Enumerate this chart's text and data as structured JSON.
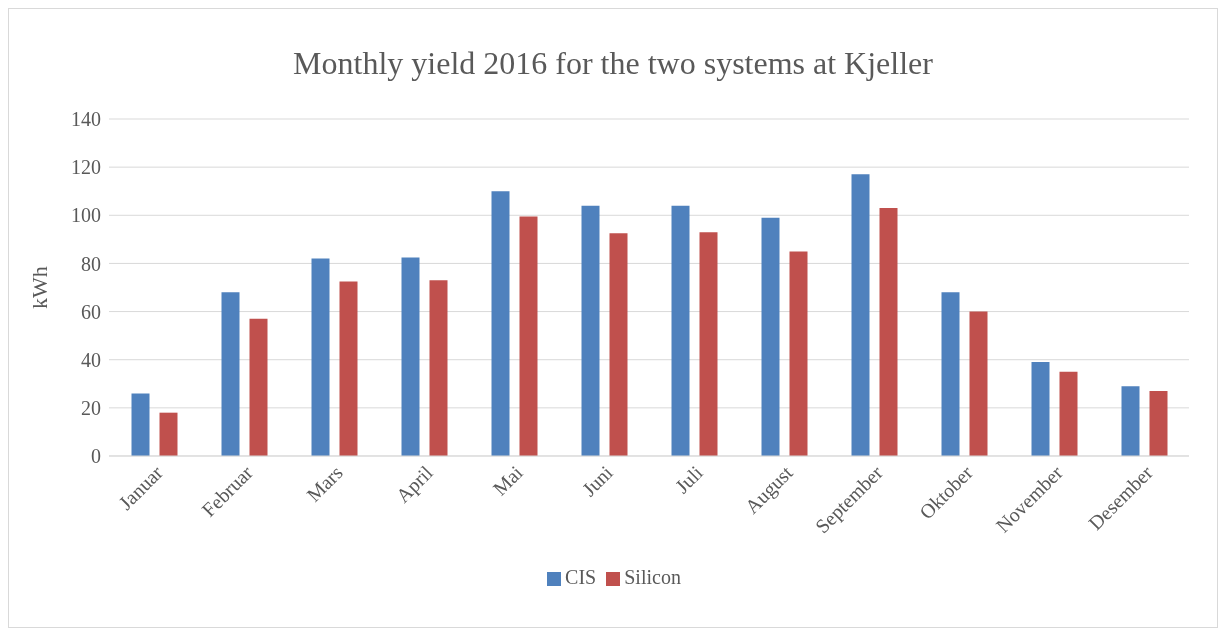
{
  "chart_data": {
    "type": "bar",
    "title": "Monthly yield 2016 for the two systems at Kjeller",
    "ylabel": "kWh",
    "categories": [
      "Januar",
      "Februar",
      "Mars",
      "April",
      "Mai",
      "Juni",
      "Juli",
      "August",
      "September",
      "Oktober",
      "November",
      "Desember"
    ],
    "series": [
      {
        "name": "CIS",
        "color": "#4f81bd",
        "values": [
          26,
          68,
          82,
          82.5,
          110,
          104,
          104,
          99,
          117,
          68,
          39,
          29
        ]
      },
      {
        "name": "Silicon",
        "color": "#c0504d",
        "values": [
          18,
          57,
          72.5,
          73,
          99.5,
          92.5,
          93,
          85,
          103,
          60,
          35,
          27
        ]
      }
    ],
    "ylim": [
      0,
      140
    ],
    "yticks": [
      0,
      20,
      40,
      60,
      80,
      100,
      120,
      140
    ],
    "grid": "y",
    "legend": "bottom"
  }
}
